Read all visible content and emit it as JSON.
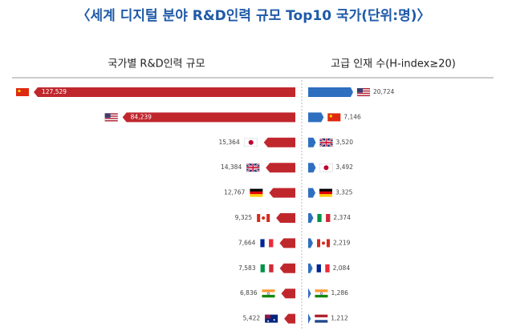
{
  "title": "〈세계 디지털 분야 R&D인력 규모 Top10 국가(단위:명)〉",
  "chart_data": [
    {
      "type": "bar",
      "orientation": "horizontal",
      "title": "국가별 R&D인력 규모",
      "color": "#c0272d",
      "values": [
        127529,
        84239,
        15364,
        14384,
        12767,
        9325,
        7664,
        7583,
        6836,
        5422
      ],
      "value_labels": [
        "127,529",
        "84,239",
        "15,364",
        "14,384",
        "12,767",
        "9,325",
        "7,664",
        "7,583",
        "6,836",
        "5,422"
      ]
    },
    {
      "type": "bar",
      "orientation": "horizontal",
      "title": "고급 인재 수(H-index≥20)",
      "color": "#2e6fc0",
      "values": [
        20724,
        7146,
        3520,
        3492,
        3325,
        2374,
        2219,
        2084,
        1286,
        1212
      ],
      "value_labels": [
        "20,724",
        "7,146",
        "3,520",
        "3,492",
        "3,325",
        "2,374",
        "2,219",
        "2,084",
        "1,286",
        "1,212"
      ]
    }
  ]
}
